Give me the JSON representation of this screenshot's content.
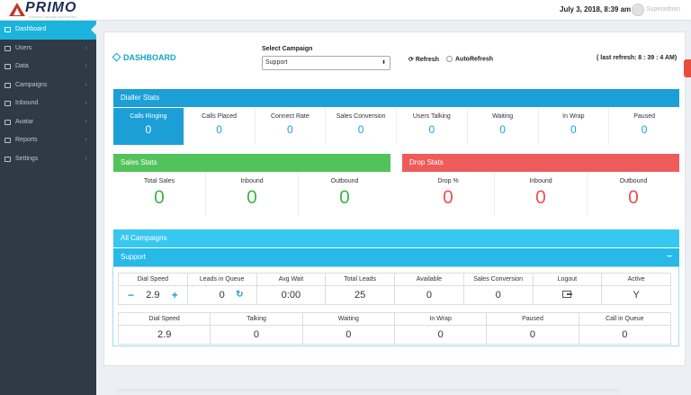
{
  "header": {
    "logo_text": "PRIMO",
    "logo_tagline": "CONTACT CENTER SOLUTIONS",
    "datetime": "July 3, 2018, 8:39 am",
    "user_name": "Superadmin"
  },
  "sidebar": {
    "items": [
      {
        "label": "Dashboard",
        "icon": "home-icon"
      },
      {
        "label": "Users",
        "icon": "users-icon"
      },
      {
        "label": "Data",
        "icon": "database-icon"
      },
      {
        "label": "Campaigns",
        "icon": "bullhorn-icon"
      },
      {
        "label": "Inbound",
        "icon": "inbox-icon"
      },
      {
        "label": "Avatar",
        "icon": "user-icon"
      },
      {
        "label": "Reports",
        "icon": "chart-icon"
      },
      {
        "label": "Settings",
        "icon": "gear-icon"
      }
    ],
    "active_index": 0
  },
  "toolbar": {
    "title": "DASHBOARD",
    "select_label": "Select Campaign",
    "select_value": "Support",
    "refresh_label": "Refresh",
    "auto_refresh_label": "AutoRefresh",
    "last_refresh": "( last refresh: 8 : 39 : 4 AM)"
  },
  "dialler": {
    "title": "Dialler Stats",
    "stats": [
      {
        "label": "Calls Ringing",
        "value": "0"
      },
      {
        "label": "Calls Placed",
        "value": "0"
      },
      {
        "label": "Connect Rate",
        "value": "0"
      },
      {
        "label": "Sales Conversion",
        "value": "0"
      },
      {
        "label": "Users Talking",
        "value": "0"
      },
      {
        "label": "Waiting",
        "value": "0"
      },
      {
        "label": "In Wrap",
        "value": "0"
      },
      {
        "label": "Paused",
        "value": "0"
      }
    ]
  },
  "sales": {
    "title": "Sales Stats",
    "stats": [
      {
        "label": "Total Sales",
        "value": "0"
      },
      {
        "label": "Inbound",
        "value": "0"
      },
      {
        "label": "Outbound",
        "value": "0"
      }
    ]
  },
  "drop": {
    "title": "Drop Stats",
    "stats": [
      {
        "label": "Drop %",
        "value": "0"
      },
      {
        "label": "Inbound",
        "value": "0"
      },
      {
        "label": "Outbound",
        "value": "0"
      }
    ]
  },
  "campaigns": {
    "title": "All Campaigns",
    "campaign_name": "Support",
    "collapse_symbol": "−",
    "row1": [
      {
        "label": "Dial Speed",
        "value": "2.9"
      },
      {
        "label": "Leads in Queue",
        "value": "0"
      },
      {
        "label": "Avg Wait",
        "value": "0:00"
      },
      {
        "label": "Total Leads",
        "value": "25"
      },
      {
        "label": "Available",
        "value": "0"
      },
      {
        "label": "Sales Conversion",
        "value": "0"
      },
      {
        "label": "Logout",
        "value": ""
      },
      {
        "label": "Active",
        "value": "Y"
      }
    ],
    "row2": [
      {
        "label": "Dial Speed",
        "value": "2.9"
      },
      {
        "label": "Talking",
        "value": "0"
      },
      {
        "label": "Waiting",
        "value": "0"
      },
      {
        "label": "In Wrap",
        "value": "0"
      },
      {
        "label": "Paused",
        "value": "0"
      },
      {
        "label": "Call in Queue",
        "value": "0"
      }
    ],
    "decrease_symbol": "−",
    "increase_symbol": "+"
  },
  "colors": {
    "accent": "#1c9fd6",
    "green": "#52c35a",
    "red": "#ef5b5b",
    "sidebar": "#2f3a46"
  }
}
